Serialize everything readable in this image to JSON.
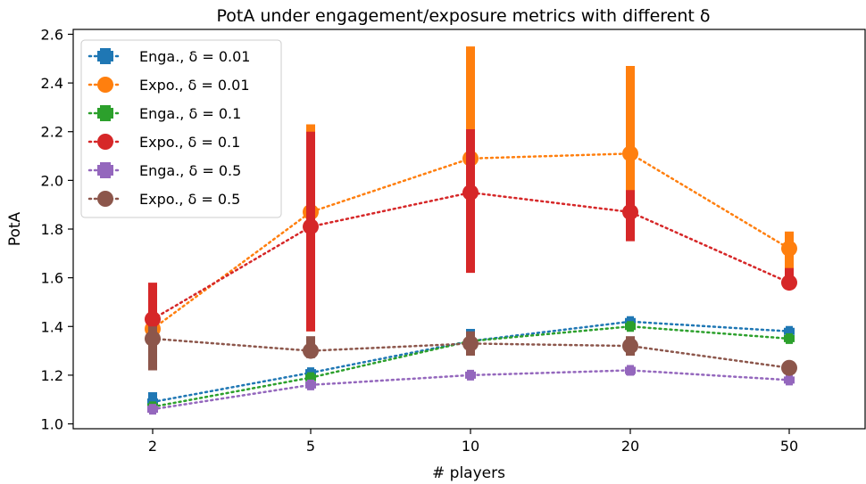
{
  "chart_data": {
    "type": "line",
    "title": "PotA under engagement/exposure metrics with different δ",
    "xlabel": "# players",
    "ylabel": "PotA",
    "categories": [
      "2",
      "5",
      "10",
      "20",
      "50"
    ],
    "ylim": [
      0.98,
      2.62
    ],
    "yticks": [
      "1.0",
      "1.2",
      "1.4",
      "1.6",
      "1.8",
      "2.0",
      "2.2",
      "2.4",
      "2.6"
    ],
    "grid": false,
    "legend_position": "top-left",
    "series": [
      {
        "name": "Enga., δ = 0.01",
        "color": "#1f77b4",
        "marker": "plus",
        "values": [
          1.09,
          1.21,
          1.34,
          1.42,
          1.38
        ],
        "err_low": [
          1.05,
          1.2,
          1.33,
          1.41,
          1.37
        ],
        "err_high": [
          1.13,
          1.22,
          1.39,
          1.43,
          1.39
        ]
      },
      {
        "name": "Expo., δ = 0.01",
        "color": "#ff7f0e",
        "marker": "circle",
        "values": [
          1.39,
          1.87,
          2.09,
          2.11,
          1.72
        ],
        "err_low": [
          1.22,
          1.38,
          1.66,
          1.78,
          1.63
        ],
        "err_high": [
          1.55,
          2.23,
          2.55,
          2.47,
          1.79
        ]
      },
      {
        "name": "Enga., δ = 0.1",
        "color": "#2ca02c",
        "marker": "plus",
        "values": [
          1.07,
          1.19,
          1.34,
          1.4,
          1.35
        ],
        "err_low": [
          1.06,
          1.18,
          1.33,
          1.39,
          1.34
        ],
        "err_high": [
          1.08,
          1.2,
          1.35,
          1.41,
          1.36
        ]
      },
      {
        "name": "Expo., δ = 0.1",
        "color": "#d62728",
        "marker": "circle",
        "values": [
          1.43,
          1.81,
          1.95,
          1.87,
          1.58
        ],
        "err_low": [
          1.28,
          1.38,
          1.62,
          1.75,
          1.56
        ],
        "err_high": [
          1.58,
          2.2,
          2.21,
          1.96,
          1.64
        ]
      },
      {
        "name": "Enga., δ = 0.5",
        "color": "#9467bd",
        "marker": "plus",
        "values": [
          1.06,
          1.16,
          1.2,
          1.22,
          1.18
        ],
        "err_low": [
          1.06,
          1.15,
          1.2,
          1.2,
          1.18
        ],
        "err_high": [
          1.07,
          1.17,
          1.2,
          1.23,
          1.18
        ]
      },
      {
        "name": "Expo., δ = 0.5",
        "color": "#8c564b",
        "marker": "circle",
        "values": [
          1.35,
          1.3,
          1.33,
          1.32,
          1.23
        ],
        "err_low": [
          1.22,
          1.27,
          1.28,
          1.28,
          1.22
        ],
        "err_high": [
          1.4,
          1.36,
          1.38,
          1.36,
          1.24
        ]
      }
    ]
  }
}
